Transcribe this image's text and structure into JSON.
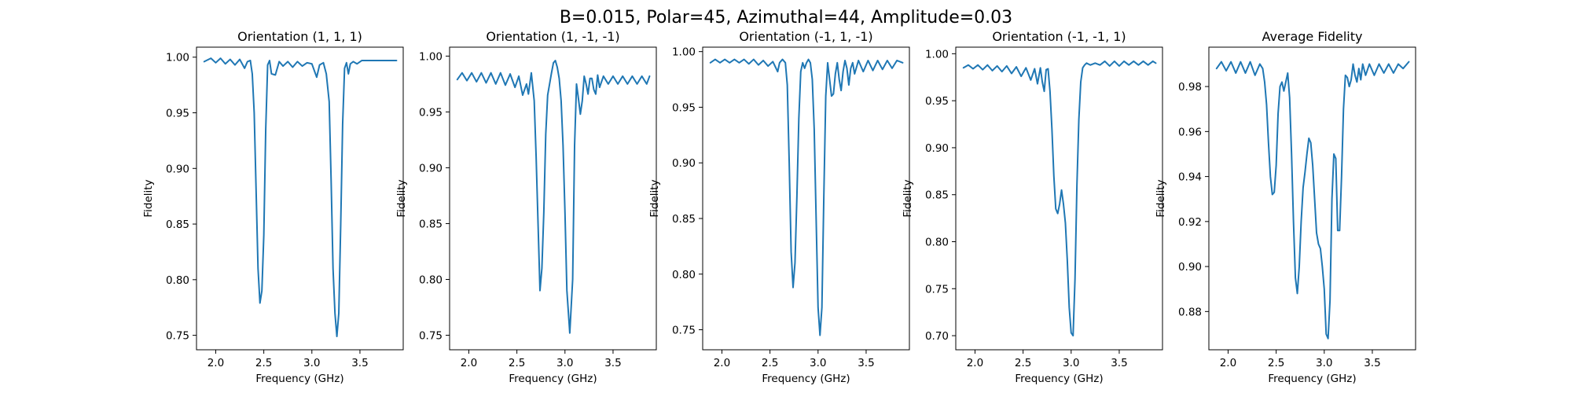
{
  "figure": {
    "suptitle": "B=0.015, Polar=45, Azimuthal=44, Amplitude=0.03"
  },
  "colors": {
    "line": "#1f77b4"
  },
  "chart_data": [
    {
      "type": "line",
      "title": "Orientation (1, 1, 1)",
      "xlabel": "Frequency (GHz)",
      "ylabel": "Fidelity",
      "xlim": [
        1.8,
        3.95
      ],
      "ylim": [
        0.737,
        1.009
      ],
      "xticks": [
        2.0,
        2.5,
        3.0,
        3.5
      ],
      "xticklabels": [
        "2.0",
        "2.5",
        "3.0",
        "3.5"
      ],
      "yticks": [
        0.75,
        0.8,
        0.85,
        0.9,
        0.95,
        1.0
      ],
      "yticklabels": [
        "0.75",
        "0.80",
        "0.85",
        "0.90",
        "0.95",
        "1.00"
      ],
      "series": [
        {
          "x": [
            1.88,
            1.95,
            2.0,
            2.05,
            2.1,
            2.15,
            2.2,
            2.25,
            2.3,
            2.33,
            2.36,
            2.38,
            2.4,
            2.42,
            2.44,
            2.46,
            2.48,
            2.5,
            2.52,
            2.54,
            2.56,
            2.58,
            2.62,
            2.66,
            2.7,
            2.75,
            2.8,
            2.85,
            2.9,
            2.95,
            3.0,
            3.05,
            3.08,
            3.12,
            3.15,
            3.18,
            3.2,
            3.22,
            3.24,
            3.26,
            3.28,
            3.3,
            3.32,
            3.34,
            3.36,
            3.38,
            3.4,
            3.43,
            3.47,
            3.52,
            3.6,
            3.7,
            3.8,
            3.88
          ],
          "y": [
            0.996,
            0.999,
            0.995,
            0.999,
            0.994,
            0.998,
            0.993,
            0.998,
            0.99,
            0.996,
            0.997,
            0.985,
            0.95,
            0.88,
            0.81,
            0.779,
            0.79,
            0.84,
            0.935,
            0.993,
            0.997,
            0.985,
            0.984,
            0.996,
            0.992,
            0.996,
            0.991,
            0.996,
            0.992,
            0.995,
            0.994,
            0.982,
            0.993,
            0.995,
            0.985,
            0.96,
            0.89,
            0.81,
            0.77,
            0.749,
            0.77,
            0.85,
            0.94,
            0.99,
            0.995,
            0.985,
            0.994,
            0.996,
            0.994,
            0.997,
            0.997,
            0.997,
            0.997,
            0.997
          ]
        }
      ]
    },
    {
      "type": "line",
      "title": "Orientation (1, -1, -1)",
      "xlabel": "Frequency (GHz)",
      "ylabel": "Fidelity",
      "xlim": [
        1.8,
        3.95
      ],
      "ylim": [
        0.737,
        1.008
      ],
      "xticks": [
        2.0,
        2.5,
        3.0,
        3.5
      ],
      "xticklabels": [
        "2.0",
        "2.5",
        "3.0",
        "3.5"
      ],
      "yticks": [
        0.75,
        0.8,
        0.85,
        0.9,
        0.95,
        1.0
      ],
      "yticklabels": [
        "0.75",
        "0.80",
        "0.85",
        "0.90",
        "0.95",
        "1.00"
      ],
      "series": [
        {
          "x": [
            1.88,
            1.93,
            1.98,
            2.03,
            2.08,
            2.13,
            2.18,
            2.23,
            2.28,
            2.33,
            2.38,
            2.43,
            2.48,
            2.52,
            2.56,
            2.6,
            2.62,
            2.65,
            2.68,
            2.7,
            2.72,
            2.74,
            2.76,
            2.78,
            2.8,
            2.82,
            2.84,
            2.86,
            2.88,
            2.9,
            2.92,
            2.94,
            2.96,
            2.98,
            3.0,
            3.02,
            3.05,
            3.08,
            3.1,
            3.12,
            3.14,
            3.16,
            3.18,
            3.2,
            3.22,
            3.24,
            3.26,
            3.28,
            3.3,
            3.32,
            3.34,
            3.36,
            3.4,
            3.45,
            3.5,
            3.55,
            3.6,
            3.65,
            3.7,
            3.75,
            3.8,
            3.85,
            3.88
          ],
          "y": [
            0.979,
            0.985,
            0.978,
            0.985,
            0.977,
            0.985,
            0.976,
            0.985,
            0.975,
            0.985,
            0.974,
            0.984,
            0.972,
            0.982,
            0.965,
            0.975,
            0.966,
            0.985,
            0.96,
            0.91,
            0.85,
            0.79,
            0.81,
            0.86,
            0.93,
            0.965,
            0.975,
            0.985,
            0.994,
            0.996,
            0.99,
            0.98,
            0.96,
            0.92,
            0.86,
            0.79,
            0.752,
            0.8,
            0.92,
            0.975,
            0.962,
            0.948,
            0.96,
            0.982,
            0.975,
            0.966,
            0.98,
            0.98,
            0.97,
            0.966,
            0.983,
            0.972,
            0.982,
            0.975,
            0.982,
            0.975,
            0.982,
            0.975,
            0.982,
            0.975,
            0.982,
            0.975,
            0.982
          ]
        }
      ]
    },
    {
      "type": "line",
      "title": "Orientation (-1, 1, -1)",
      "xlabel": "Frequency (GHz)",
      "ylabel": "Fidelity",
      "xlim": [
        1.8,
        3.95
      ],
      "ylim": [
        0.732,
        1.004
      ],
      "xticks": [
        2.0,
        2.5,
        3.0,
        3.5
      ],
      "xticklabels": [
        "2.0",
        "2.5",
        "3.0",
        "3.5"
      ],
      "yticks": [
        0.75,
        0.8,
        0.85,
        0.9,
        0.95,
        1.0
      ],
      "yticklabels": [
        "0.75",
        "0.80",
        "0.85",
        "0.90",
        "0.95",
        "1.00"
      ],
      "series": [
        {
          "x": [
            1.88,
            1.93,
            1.98,
            2.03,
            2.08,
            2.13,
            2.18,
            2.23,
            2.28,
            2.33,
            2.38,
            2.43,
            2.48,
            2.53,
            2.58,
            2.6,
            2.63,
            2.66,
            2.68,
            2.7,
            2.72,
            2.74,
            2.76,
            2.78,
            2.8,
            2.82,
            2.84,
            2.86,
            2.88,
            2.9,
            2.92,
            2.94,
            2.96,
            2.98,
            3.0,
            3.02,
            3.04,
            3.06,
            3.08,
            3.1,
            3.12,
            3.14,
            3.16,
            3.18,
            3.2,
            3.22,
            3.24,
            3.26,
            3.28,
            3.3,
            3.32,
            3.34,
            3.36,
            3.38,
            3.42,
            3.47,
            3.52,
            3.57,
            3.62,
            3.67,
            3.72,
            3.77,
            3.82,
            3.88
          ],
          "y": [
            0.99,
            0.993,
            0.99,
            0.993,
            0.99,
            0.993,
            0.99,
            0.993,
            0.989,
            0.993,
            0.988,
            0.992,
            0.987,
            0.991,
            0.982,
            0.99,
            0.993,
            0.99,
            0.97,
            0.9,
            0.82,
            0.788,
            0.81,
            0.87,
            0.94,
            0.982,
            0.99,
            0.985,
            0.99,
            0.993,
            0.99,
            0.975,
            0.93,
            0.85,
            0.77,
            0.745,
            0.77,
            0.87,
            0.96,
            0.99,
            0.975,
            0.96,
            0.962,
            0.98,
            0.99,
            0.975,
            0.965,
            0.982,
            0.992,
            0.985,
            0.97,
            0.985,
            0.99,
            0.98,
            0.992,
            0.982,
            0.992,
            0.983,
            0.992,
            0.984,
            0.992,
            0.985,
            0.992,
            0.99
          ]
        }
      ]
    },
    {
      "type": "line",
      "title": "Orientation (-1, -1, 1)",
      "xlabel": "Frequency (GHz)",
      "ylabel": "Fidelity",
      "xlim": [
        1.8,
        3.95
      ],
      "ylim": [
        0.685,
        1.007
      ],
      "xticks": [
        2.0,
        2.5,
        3.0,
        3.5
      ],
      "xticklabels": [
        "2.0",
        "2.5",
        "3.0",
        "3.5"
      ],
      "yticks": [
        0.7,
        0.75,
        0.8,
        0.85,
        0.9,
        0.95,
        1.0
      ],
      "yticklabels": [
        "0.70",
        "0.75",
        "0.80",
        "0.85",
        "0.90",
        "0.95",
        "1.00"
      ],
      "series": [
        {
          "x": [
            1.88,
            1.93,
            1.98,
            2.03,
            2.08,
            2.13,
            2.18,
            2.23,
            2.28,
            2.33,
            2.38,
            2.43,
            2.48,
            2.53,
            2.58,
            2.62,
            2.65,
            2.68,
            2.7,
            2.72,
            2.74,
            2.76,
            2.78,
            2.8,
            2.82,
            2.84,
            2.86,
            2.88,
            2.9,
            2.92,
            2.94,
            2.96,
            2.98,
            3.0,
            3.02,
            3.04,
            3.06,
            3.08,
            3.1,
            3.12,
            3.14,
            3.16,
            3.2,
            3.25,
            3.3,
            3.35,
            3.4,
            3.45,
            3.5,
            3.55,
            3.6,
            3.65,
            3.7,
            3.75,
            3.8,
            3.85,
            3.88
          ],
          "y": [
            0.985,
            0.988,
            0.984,
            0.988,
            0.983,
            0.988,
            0.982,
            0.987,
            0.981,
            0.987,
            0.979,
            0.986,
            0.976,
            0.985,
            0.972,
            0.984,
            0.968,
            0.985,
            0.97,
            0.96,
            0.983,
            0.984,
            0.96,
            0.92,
            0.87,
            0.835,
            0.83,
            0.84,
            0.855,
            0.84,
            0.82,
            0.78,
            0.73,
            0.703,
            0.7,
            0.76,
            0.86,
            0.93,
            0.97,
            0.985,
            0.988,
            0.99,
            0.988,
            0.99,
            0.988,
            0.992,
            0.987,
            0.992,
            0.987,
            0.992,
            0.988,
            0.992,
            0.988,
            0.992,
            0.988,
            0.992,
            0.99
          ]
        }
      ]
    },
    {
      "type": "line",
      "title": "Average Fidelity",
      "xlabel": "Frequency (GHz)",
      "ylabel": "Fidelity",
      "xlim": [
        1.8,
        3.95
      ],
      "ylim": [
        0.863,
        0.9975
      ],
      "xticks": [
        2.0,
        2.5,
        3.0,
        3.5
      ],
      "xticklabels": [
        "2.0",
        "2.5",
        "3.0",
        "3.5"
      ],
      "yticks": [
        0.88,
        0.9,
        0.92,
        0.94,
        0.96,
        0.98
      ],
      "yticklabels": [
        "0.88",
        "0.90",
        "0.92",
        "0.94",
        "0.96",
        "0.98"
      ],
      "series": [
        {
          "x": [
            1.88,
            1.93,
            1.98,
            2.03,
            2.08,
            2.13,
            2.18,
            2.23,
            2.28,
            2.33,
            2.36,
            2.38,
            2.4,
            2.42,
            2.44,
            2.46,
            2.48,
            2.5,
            2.52,
            2.54,
            2.56,
            2.58,
            2.6,
            2.62,
            2.64,
            2.66,
            2.68,
            2.7,
            2.72,
            2.74,
            2.76,
            2.78,
            2.8,
            2.82,
            2.84,
            2.86,
            2.88,
            2.9,
            2.92,
            2.94,
            2.96,
            2.98,
            3.0,
            3.02,
            3.04,
            3.06,
            3.08,
            3.1,
            3.12,
            3.14,
            3.16,
            3.18,
            3.2,
            3.22,
            3.24,
            3.26,
            3.28,
            3.3,
            3.32,
            3.34,
            3.36,
            3.38,
            3.4,
            3.43,
            3.47,
            3.52,
            3.57,
            3.62,
            3.67,
            3.72,
            3.77,
            3.82,
            3.88
          ],
          "y": [
            0.988,
            0.991,
            0.987,
            0.991,
            0.986,
            0.991,
            0.986,
            0.991,
            0.985,
            0.99,
            0.988,
            0.982,
            0.972,
            0.955,
            0.94,
            0.932,
            0.933,
            0.945,
            0.968,
            0.98,
            0.982,
            0.978,
            0.982,
            0.986,
            0.975,
            0.95,
            0.92,
            0.895,
            0.888,
            0.9,
            0.92,
            0.935,
            0.942,
            0.95,
            0.957,
            0.955,
            0.945,
            0.93,
            0.915,
            0.91,
            0.908,
            0.9,
            0.89,
            0.87,
            0.868,
            0.885,
            0.93,
            0.95,
            0.948,
            0.916,
            0.916,
            0.94,
            0.97,
            0.985,
            0.984,
            0.98,
            0.983,
            0.99,
            0.985,
            0.982,
            0.988,
            0.983,
            0.99,
            0.985,
            0.99,
            0.985,
            0.99,
            0.986,
            0.99,
            0.986,
            0.99,
            0.988,
            0.991
          ]
        }
      ]
    }
  ]
}
